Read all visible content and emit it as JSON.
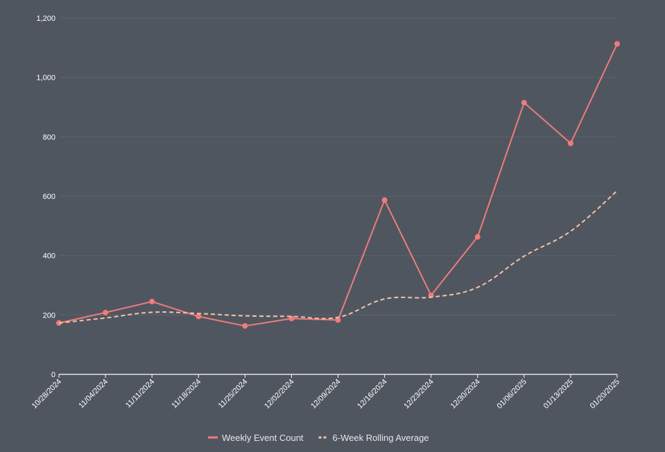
{
  "chart_data": {
    "type": "line",
    "title": "",
    "xlabel": "",
    "ylabel": "",
    "categories": [
      "10/28/2024",
      "11/04/2024",
      "11/11/2024",
      "11/18/2024",
      "11/25/2024",
      "12/02/2024",
      "12/09/2024",
      "12/16/2024",
      "12/23/2024",
      "12/30/2024",
      "01/06/2025",
      "01/13/2025",
      "01/20/2025"
    ],
    "ylim": [
      0,
      1200
    ],
    "yticks": [
      0,
      200,
      400,
      600,
      800,
      1000,
      1200
    ],
    "ytick_labels": [
      "0",
      "200",
      "400",
      "600",
      "800",
      "1,000",
      "1,200"
    ],
    "grid": true,
    "legend_position": "bottom-center",
    "series": [
      {
        "name": "Weekly Event Count",
        "color": "#f07c7c",
        "style": "solid",
        "markers": true,
        "values": [
          173,
          208,
          245,
          195,
          163,
          188,
          183,
          587,
          266,
          463,
          915,
          778,
          1113
        ]
      },
      {
        "name": "6-Week Rolling Average",
        "color": "#f5c4a8",
        "style": "dashed",
        "markers": false,
        "values": [
          173,
          190,
          209,
          205,
          197,
          195,
          192,
          254,
          260,
          293,
          398,
          482,
          618
        ]
      }
    ]
  }
}
